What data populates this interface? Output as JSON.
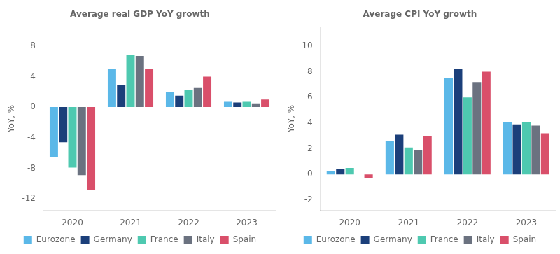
{
  "chart_data": [
    {
      "type": "bar",
      "title": "Average real GDP YoY growth",
      "ylabel": "YoY, %",
      "categories": [
        "2020",
        "2021",
        "2022",
        "2023"
      ],
      "series": [
        {
          "name": "Eurozone",
          "color": "#5bb8e8",
          "values": [
            -6.5,
            5.0,
            2.0,
            0.7
          ]
        },
        {
          "name": "Germany",
          "color": "#1b3f7a",
          "values": [
            -4.6,
            2.9,
            1.5,
            0.6
          ]
        },
        {
          "name": "France",
          "color": "#4ec9b0",
          "values": [
            -7.9,
            6.8,
            2.2,
            0.7
          ]
        },
        {
          "name": "Italy",
          "color": "#6b7280",
          "values": [
            -8.9,
            6.7,
            2.5,
            0.5
          ]
        },
        {
          "name": "Spain",
          "color": "#d94f6a",
          "values": [
            -10.8,
            5.0,
            4.0,
            1.0
          ]
        }
      ],
      "ylim": [
        -13.5,
        10.5
      ],
      "yticks": [
        -12,
        -8,
        -4,
        0,
        4,
        8
      ],
      "grid": false,
      "legend": "bottom"
    },
    {
      "type": "bar",
      "title": "Average CPI YoY growth",
      "ylabel": "YoY, %",
      "categories": [
        "2020",
        "2021",
        "2022",
        "2023"
      ],
      "series": [
        {
          "name": "Eurozone",
          "color": "#5bb8e8",
          "values": [
            0.25,
            2.6,
            7.5,
            4.1
          ]
        },
        {
          "name": "Germany",
          "color": "#1b3f7a",
          "values": [
            0.4,
            3.1,
            8.2,
            3.9
          ]
        },
        {
          "name": "France",
          "color": "#4ec9b0",
          "values": [
            0.5,
            2.1,
            6.0,
            4.1
          ]
        },
        {
          "name": "Italy",
          "color": "#6b7280",
          "values": [
            0.0,
            1.9,
            7.2,
            3.8
          ]
        },
        {
          "name": "Spain",
          "color": "#d94f6a",
          "values": [
            -0.3,
            3.0,
            8.0,
            3.2
          ]
        }
      ],
      "ylim": [
        -2.8,
        11.5
      ],
      "yticks": [
        -2,
        0,
        2,
        4,
        6,
        8,
        10
      ],
      "grid": false,
      "legend": "bottom"
    }
  ]
}
